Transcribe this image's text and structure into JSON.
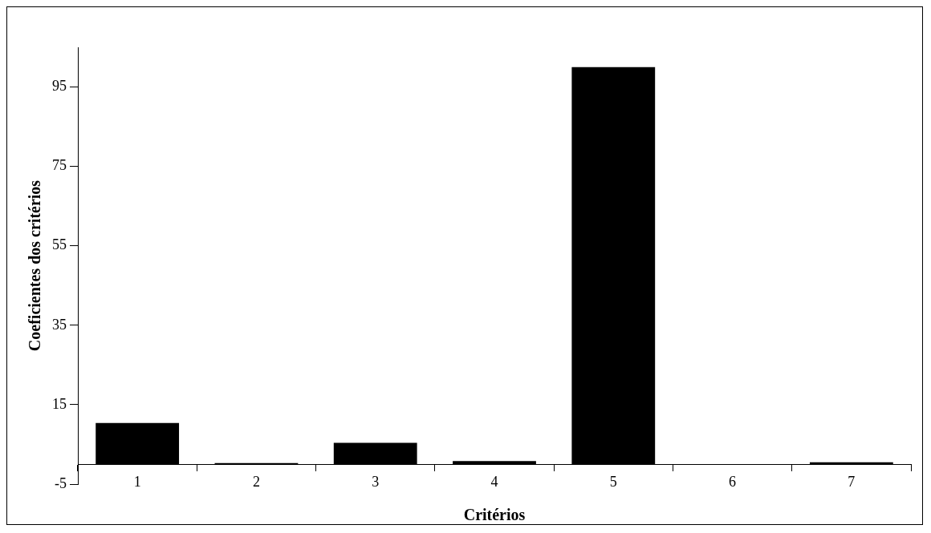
{
  "chart_data": {
    "type": "bar",
    "xlabel": "Critérios",
    "ylabel": "Coeficientes dos critérios",
    "categories": [
      "1",
      "2",
      "3",
      "4",
      "5",
      "6",
      "7"
    ],
    "values": [
      10.4,
      0.3,
      5.4,
      0.8,
      100,
      0,
      0.5
    ],
    "color": "#000000",
    "ylim": [
      -5,
      105
    ],
    "yticks": [
      -5,
      15,
      35,
      55,
      75,
      95
    ],
    "grid": false,
    "legend": false
  }
}
